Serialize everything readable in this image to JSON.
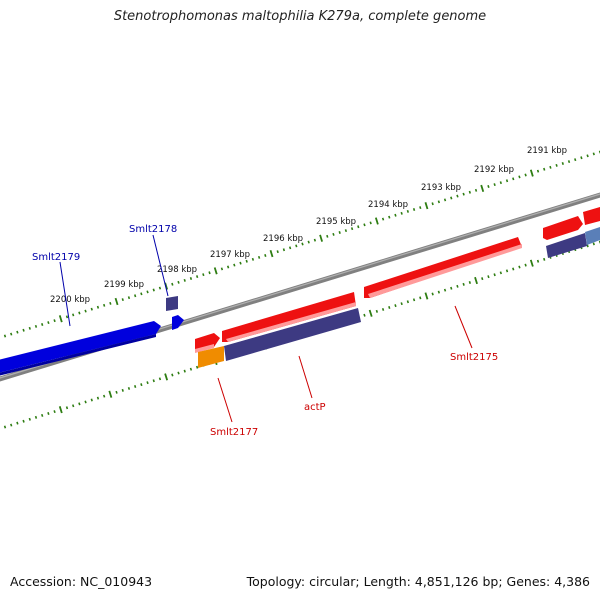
{
  "title": "Stenotrophomonas maltophilia K279a, complete genome",
  "footer": {
    "accession": "Accession: NC_010943",
    "stats": "Topology: circular; Length: 4,851,126 bp; Genes: 4,386"
  },
  "colors": {
    "backbone": "#808080",
    "tick_dots": "#2e7d12",
    "forward_gene": "#ee1111",
    "reverse_gene": "#0000dd",
    "cds_feature": "#3d3a82",
    "rna_feature": "#f08c00",
    "forward_label": "#cc0000",
    "reverse_label": "#0000aa"
  },
  "scale_labels": [
    "2191 kbp",
    "2192 kbp",
    "2193 kbp",
    "2194 kbp",
    "2195 kbp",
    "2196 kbp",
    "2197 kbp",
    "2198 kbp",
    "2199 kbp",
    "2200 kbp"
  ],
  "gene_labels": {
    "smlt2179": "Smlt2179",
    "smlt2178": "Smlt2178",
    "smlt2175": "Smlt2175",
    "actp": "actP",
    "smlt2177": "Smlt2177"
  }
}
